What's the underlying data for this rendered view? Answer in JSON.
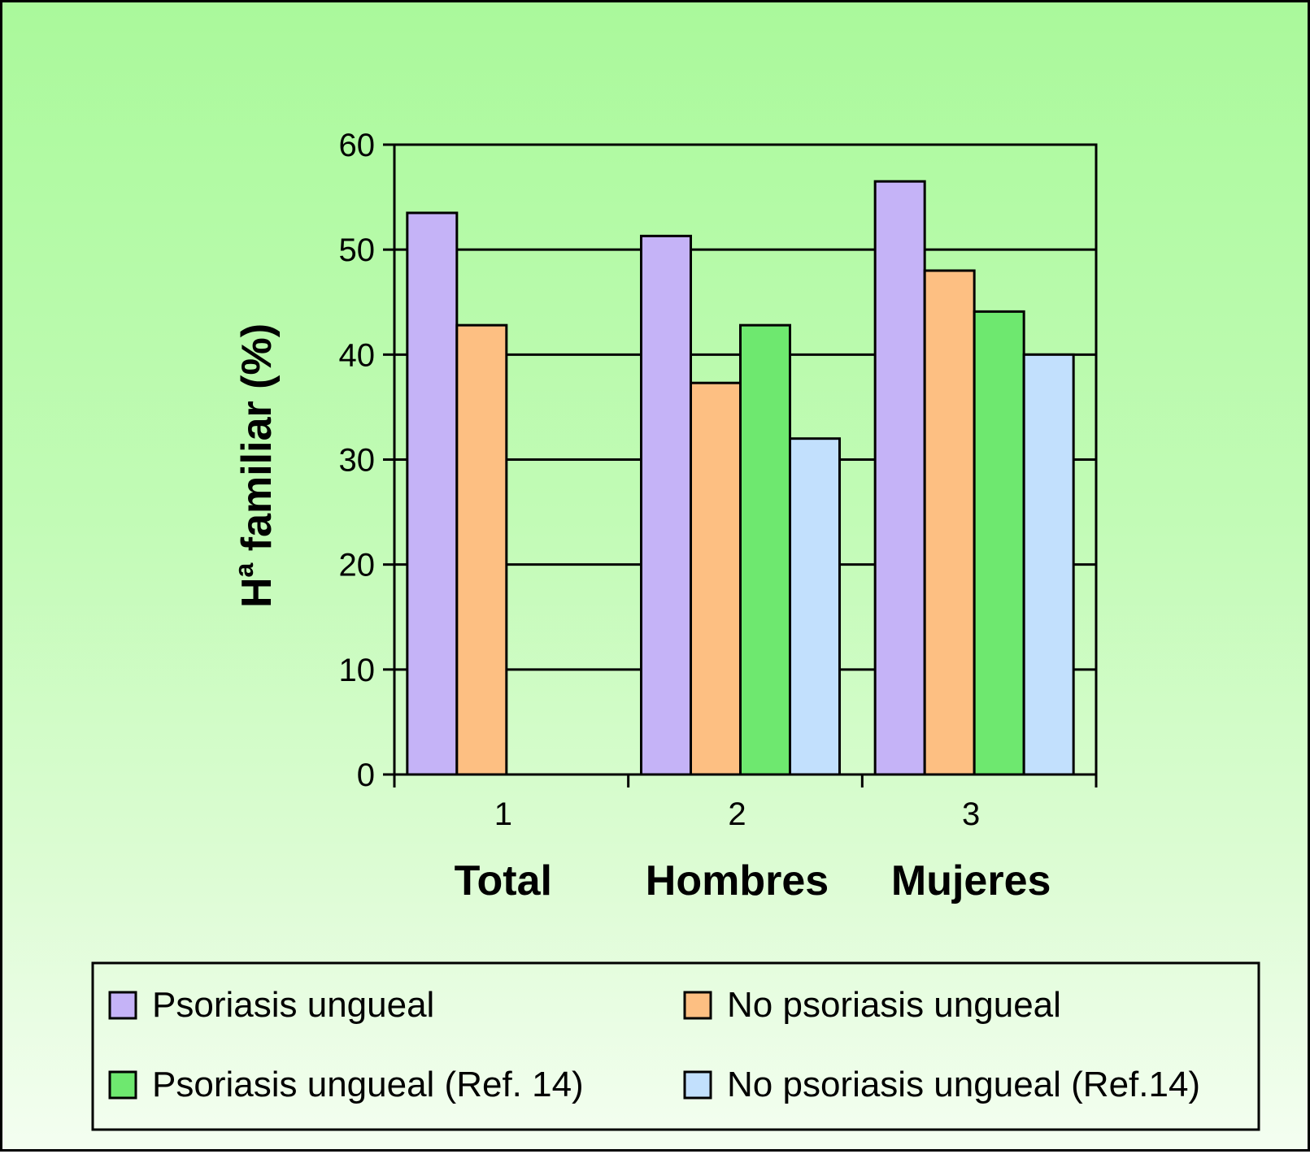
{
  "chart_data": {
    "type": "bar",
    "ylabel_main": "H",
    "ylabel_sup": "a",
    "ylabel_rest": " familiar (%)",
    "x_ticks": [
      "1",
      "2",
      "3"
    ],
    "categories": [
      "Total",
      "Hombres",
      "Mujeres"
    ],
    "ylim": [
      0,
      60
    ],
    "yticks": [
      "0",
      "10",
      "20",
      "30",
      "40",
      "50",
      "60"
    ],
    "grid": true,
    "legend_position": "bottom",
    "series": [
      {
        "name": "Psoriasis ungueal",
        "color": "#c5b3f7",
        "values": [
          53.5,
          51.3,
          56.5
        ]
      },
      {
        "name": "No psoriasis ungueal",
        "color": "#fdbf82",
        "values": [
          42.8,
          37.3,
          48.0
        ]
      },
      {
        "name": "Psoriasis ungueal (Ref. 14)",
        "color": "#6ee86f",
        "values": [
          null,
          42.8,
          44.1
        ]
      },
      {
        "name": "No psoriasis ungueal (Ref.14)",
        "color": "#c2e0fd",
        "values": [
          null,
          32.0,
          40.0
        ]
      }
    ]
  }
}
